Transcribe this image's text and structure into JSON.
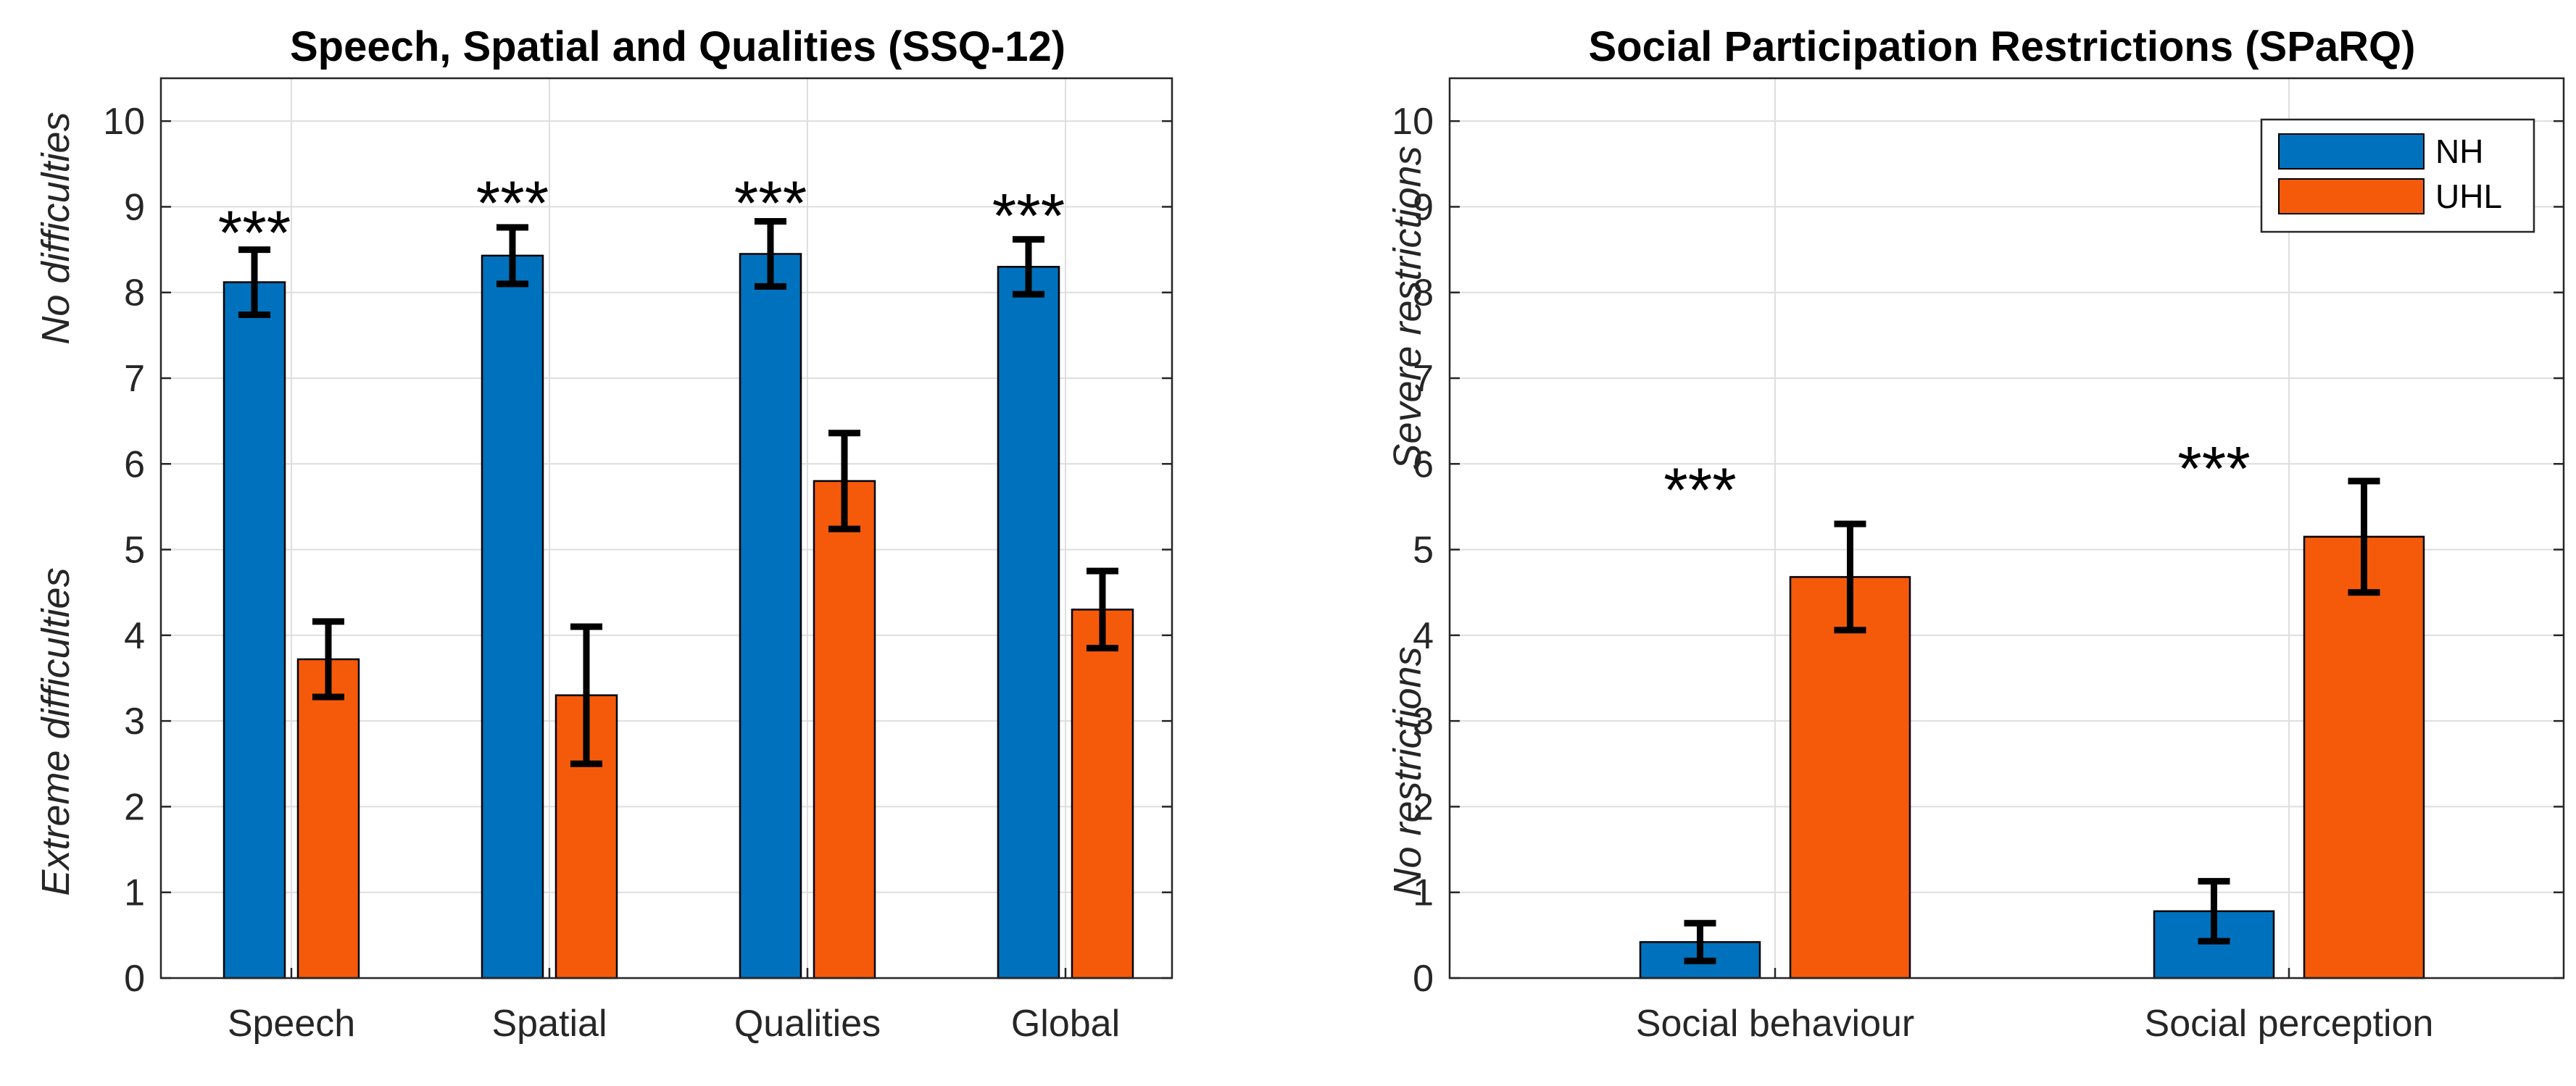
{
  "chart_data": [
    {
      "type": "bar",
      "title": "Speech, Spatial and Qualities (SSQ-12)",
      "ylabel_top": "No difficulties",
      "ylabel_bottom": "Extreme difficulties",
      "categories": [
        "Speech",
        "Spatial",
        "Qualities",
        "Global"
      ],
      "ylim": [
        0,
        10.5
      ],
      "yticks": [
        "0",
        "1",
        "2",
        "3",
        "4",
        "5",
        "6",
        "7",
        "8",
        "9",
        "10"
      ],
      "grid": true,
      "series": [
        {
          "name": "NH",
          "color": "#0072BD",
          "values": [
            8.12,
            8.43,
            8.45,
            8.3
          ],
          "err": [
            0.38,
            0.33,
            0.38,
            0.32
          ]
        },
        {
          "name": "UHL",
          "color": "#F55A0B",
          "values": [
            3.72,
            3.3,
            5.8,
            4.3
          ],
          "err": [
            0.44,
            0.8,
            0.56,
            0.45
          ]
        }
      ],
      "annotations": [
        {
          "category": "Speech",
          "text": "***",
          "y": 8.85
        },
        {
          "category": "Spatial",
          "text": "***",
          "y": 9.2
        },
        {
          "category": "Qualities",
          "text": "***",
          "y": 9.2
        },
        {
          "category": "Global",
          "text": "***",
          "y": 9.05
        }
      ]
    },
    {
      "type": "bar",
      "title": "Social Participation Restrictions (SPaRQ)",
      "ylabel_top": "Severe restrictions",
      "ylabel_bottom": "No restrictions",
      "categories": [
        "Social behaviour",
        "Social perception"
      ],
      "ylim": [
        0,
        10.5
      ],
      "yticks": [
        "0",
        "1",
        "2",
        "3",
        "4",
        "5",
        "6",
        "7",
        "8",
        "9",
        "10"
      ],
      "grid": true,
      "legend": {
        "position": "top-right",
        "entries": [
          "NH",
          "UHL"
        ]
      },
      "series": [
        {
          "name": "NH",
          "color": "#0072BD",
          "values": [
            0.42,
            0.78
          ],
          "err": [
            0.22,
            0.35
          ]
        },
        {
          "name": "UHL",
          "color": "#F55A0B",
          "values": [
            4.68,
            5.15
          ],
          "err": [
            0.62,
            0.65
          ]
        }
      ],
      "annotations": [
        {
          "category": "Social behaviour",
          "text": "***",
          "y": 5.85
        },
        {
          "category": "Social perception",
          "text": "***",
          "y": 6.1
        }
      ]
    }
  ]
}
